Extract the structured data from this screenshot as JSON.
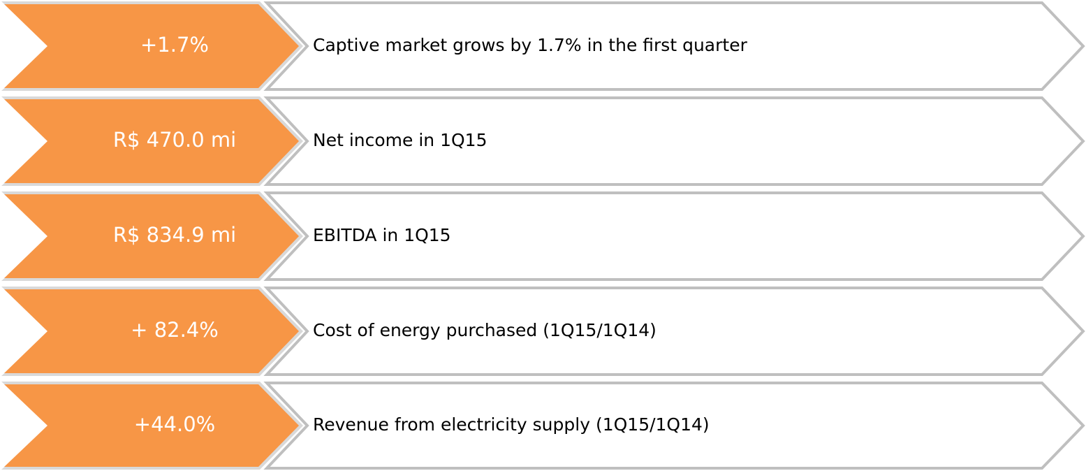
{
  "items": [
    {
      "value": "+1.7%",
      "text": "Captive market grows by 1.7% in the first quarter"
    },
    {
      "value": "R$ 470.0 mi",
      "text": "Net income in 1Q15"
    },
    {
      "value": "R$ 834.9 mi",
      "text": "EBITDA in 1Q15"
    },
    {
      "value": "+ 82.4%",
      "text": "Cost of energy purchased (1Q15/1Q14)"
    },
    {
      "value": "+44.0%",
      "text": "Revenue from electricity supply (1Q15/1Q14)"
    }
  ]
}
